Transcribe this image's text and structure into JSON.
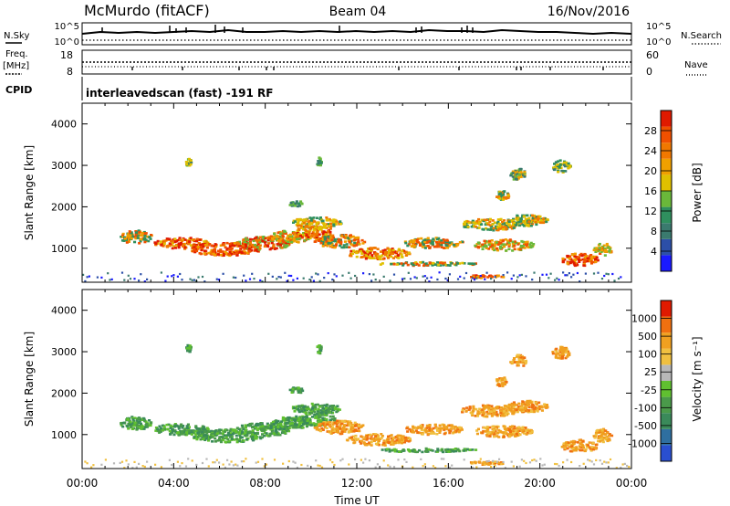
{
  "header": {
    "station": "McMurdo (fitACF)",
    "beam": "Beam 04",
    "date": "16/Nov/2016"
  },
  "top_panels": {
    "nsky_label": "N.Sky",
    "nsky_ticks": [
      "10^5",
      "10^0"
    ],
    "nsearch_label": "N.Search",
    "nsearch_ticks": [
      "10^5",
      "10^0"
    ],
    "freq_label": "Freq.",
    "freq_unit": "[MHz]",
    "freq_ticks": [
      "18",
      "8"
    ],
    "nave_label": "Nave",
    "nave_ticks": [
      "60",
      "0"
    ],
    "cpid_label": "CPID",
    "cpid_text": "interleavedscan (fast) -191 RF"
  },
  "chart_data": [
    {
      "type": "heatmap",
      "name": "power-panel",
      "ylabel": "Slant Range [km]",
      "xlim": [
        0,
        24
      ],
      "ylim": [
        180,
        4500
      ],
      "yticks": [
        1000,
        2000,
        3000,
        4000
      ],
      "xticks": [
        "00:00",
        "04:00",
        "08:00",
        "12:00",
        "16:00",
        "20:00",
        "00:00"
      ],
      "colorbar": {
        "label": "Power [dB]",
        "ticks": [
          "4",
          "8",
          "12",
          "16",
          "20",
          "24",
          "28"
        ],
        "colors": [
          "#1a1aff",
          "#2c4fa8",
          "#3a7a6e",
          "#2f8f5e",
          "#6ab83a",
          "#e0c000",
          "#f0a000",
          "#f07800",
          "#f05000",
          "#e01a00"
        ]
      }
    },
    {
      "type": "heatmap",
      "name": "velocity-panel",
      "ylabel": "Slant Range [km]",
      "xlabel": "Time UT",
      "xlim": [
        0,
        24
      ],
      "ylim": [
        180,
        4500
      ],
      "yticks": [
        1000,
        2000,
        3000,
        4000
      ],
      "xticks": [
        "00:00",
        "04:00",
        "08:00",
        "12:00",
        "16:00",
        "20:00",
        "00:00"
      ],
      "colorbar": {
        "label": "Velocity [m s⁻¹]",
        "ticks": [
          "1000",
          "500",
          "100",
          "25",
          "-25",
          "-100",
          "-500",
          "-1000"
        ],
        "colors": [
          "#2a4fd0",
          "#2f6fa0",
          "#3a8a5a",
          "#4a9a4a",
          "#60c030",
          "#b8b8b8",
          "#f0c040",
          "#f0a020",
          "#f07010",
          "#e01a00"
        ]
      }
    }
  ]
}
